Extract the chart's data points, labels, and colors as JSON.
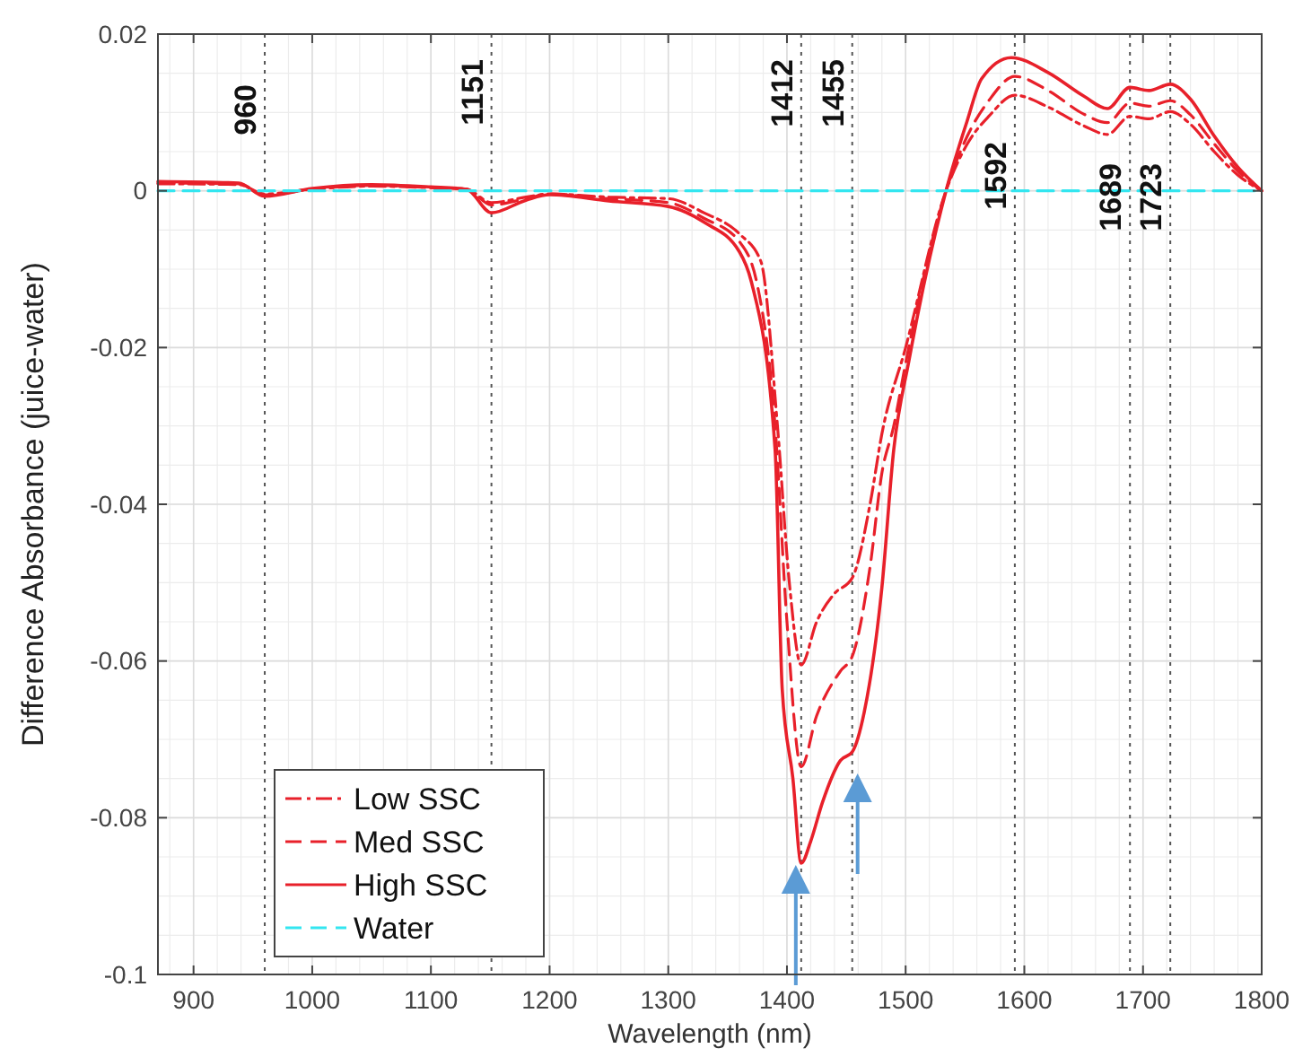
{
  "chart_data": {
    "type": "line",
    "xlabel": "Wavelength (nm)",
    "ylabel": "Difference Absorbance (juice-water)",
    "xlim": [
      870,
      1800
    ],
    "ylim": [
      -0.1,
      0.02
    ],
    "xticks": [
      900,
      1000,
      1100,
      1200,
      1300,
      1400,
      1500,
      1600,
      1700,
      1800
    ],
    "yticks": [
      -0.1,
      -0.08,
      -0.06,
      -0.04,
      -0.02,
      0,
      0.02
    ],
    "grid": true,
    "legend": "bottom left",
    "series": [
      {
        "name": "Low SSC",
        "color": "#e8202a",
        "line_style": "dashdot",
        "x": [
          870,
          938,
          960,
          1000,
          1050,
          1100,
          1130,
          1151,
          1180,
          1200,
          1250,
          1300,
          1330,
          1360,
          1378,
          1392,
          1402,
          1412,
          1425,
          1440,
          1455,
          1470,
          1480,
          1500,
          1534,
          1552,
          1570,
          1592,
          1620,
          1650,
          1670,
          1689,
          1705,
          1723,
          1740,
          1760,
          1780,
          1800
        ],
        "values": [
          0.0009,
          0.0008,
          -0.0004,
          0.0002,
          0.0006,
          0.0004,
          0.0002,
          -0.0015,
          -0.0008,
          -0.0004,
          -0.0008,
          -0.001,
          -0.0028,
          -0.0055,
          -0.009,
          -0.03,
          -0.05,
          -0.0605,
          -0.055,
          -0.0514,
          -0.0494,
          -0.04,
          -0.031,
          -0.02,
          0,
          0.006,
          0.0095,
          0.0122,
          0.0107,
          0.0083,
          0.0072,
          0.0095,
          0.0092,
          0.0101,
          0.0085,
          0.005,
          0.002,
          0
        ]
      },
      {
        "name": "Med SSC",
        "color": "#e8202a",
        "line_style": "dashed",
        "x": [
          870,
          938,
          960,
          1000,
          1050,
          1100,
          1130,
          1151,
          1180,
          1200,
          1250,
          1300,
          1330,
          1360,
          1375,
          1390,
          1400,
          1412,
          1425,
          1445,
          1455,
          1470,
          1480,
          1490,
          1500,
          1534,
          1552,
          1570,
          1592,
          1620,
          1650,
          1670,
          1689,
          1705,
          1723,
          1740,
          1760,
          1780,
          1800
        ],
        "values": [
          0.001,
          0.0009,
          -0.0005,
          0.0002,
          0.0007,
          0.0004,
          0.0002,
          -0.0018,
          -0.001,
          -0.0004,
          -0.001,
          -0.0015,
          -0.0035,
          -0.0065,
          -0.012,
          -0.03,
          -0.055,
          -0.0735,
          -0.067,
          -0.0613,
          -0.0594,
          -0.048,
          -0.036,
          -0.03,
          -0.022,
          0,
          0.007,
          0.0115,
          0.0146,
          0.0128,
          0.0098,
          0.0087,
          0.0112,
          0.0108,
          0.0115,
          0.0097,
          0.006,
          0.0025,
          0
        ]
      },
      {
        "name": "High SSC",
        "color": "#e8202a",
        "line_style": "solid",
        "x": [
          870,
          938,
          960,
          1000,
          1050,
          1100,
          1130,
          1151,
          1180,
          1200,
          1250,
          1300,
          1330,
          1360,
          1370,
          1390,
          1396,
          1405,
          1412,
          1420,
          1430,
          1445,
          1455,
          1465,
          1480,
          1490,
          1503,
          1534,
          1552,
          1564,
          1589,
          1620,
          1650,
          1670,
          1689,
          1705,
          1723,
          1740,
          1760,
          1780,
          1800
        ],
        "values": [
          0.0012,
          0.001,
          -0.0007,
          0.0003,
          0.0008,
          0.0005,
          0.0002,
          -0.0028,
          -0.0012,
          -0.0005,
          -0.0013,
          -0.002,
          -0.004,
          -0.0078,
          -0.0116,
          -0.033,
          -0.0636,
          -0.075,
          -0.0858,
          -0.083,
          -0.078,
          -0.0727,
          -0.0716,
          -0.0666,
          -0.0506,
          -0.033,
          -0.0215,
          0,
          0.009,
          0.0143,
          0.017,
          0.0151,
          0.0121,
          0.0105,
          0.0132,
          0.0128,
          0.0136,
          0.0117,
          0.007,
          0.003,
          0
        ]
      },
      {
        "name": "Water",
        "color": "#33e6f0",
        "line_style": "dashed",
        "x": [
          870,
          1800
        ],
        "values": [
          0,
          0
        ]
      }
    ],
    "ref_lines": [
      {
        "axis": "x",
        "value": 960,
        "label": "960",
        "line_style": "dotted"
      },
      {
        "axis": "x",
        "value": 1151,
        "label": "1151",
        "line_style": "dotted"
      },
      {
        "axis": "x",
        "value": 1412,
        "label": "1412",
        "line_style": "dotted"
      },
      {
        "axis": "x",
        "value": 1455,
        "label": "1455",
        "line_style": "dotted"
      },
      {
        "axis": "x",
        "value": 1592,
        "label": "1592",
        "line_style": "dotted"
      },
      {
        "axis": "x",
        "value": 1689,
        "label": "1689",
        "line_style": "dotted"
      },
      {
        "axis": "x",
        "value": 1723,
        "label": "1723",
        "line_style": "dotted"
      }
    ]
  }
}
